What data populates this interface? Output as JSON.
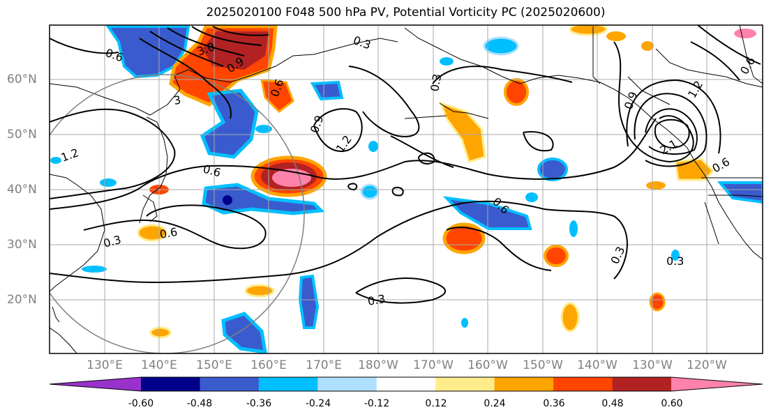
{
  "title": "2025020100 F048 500 hPa PV, Potential Vorticity PC (2025020600)",
  "lat_labels": [
    "60°N",
    "50°N",
    "40°N",
    "30°N",
    "20°N"
  ],
  "lon_labels": [
    "130°E",
    "140°E",
    "150°E",
    "160°E",
    "170°E",
    "180°W",
    "170°W",
    "160°W",
    "150°W",
    "140°W",
    "130°W",
    "120°W"
  ],
  "colorbar": {
    "tick_labels": [
      "-0.60",
      "-0.48",
      "-0.36",
      "-0.24",
      "-0.12",
      "0.12",
      "0.24",
      "0.36",
      "0.48",
      "0.60"
    ],
    "colors": [
      "#9932cc",
      "#00008b",
      "#3a5bcd",
      "#00bfff",
      "#b0e0ff",
      "#ffffff",
      "#ffec8b",
      "#ffa500",
      "#ff4500",
      "#b22222",
      "#ff82ab"
    ]
  },
  "contour_labels": [
    "0.6",
    "0.3",
    "0.3",
    "0.9",
    "1.2",
    "0.6",
    "0.3",
    "0.6",
    "1.2",
    "0.6",
    "0.3",
    "0.3",
    "0.6",
    "0.3",
    "1.2",
    "0.6",
    "0.9",
    "3.0",
    "2.1",
    "0.9",
    "3",
    "0.6"
  ]
}
